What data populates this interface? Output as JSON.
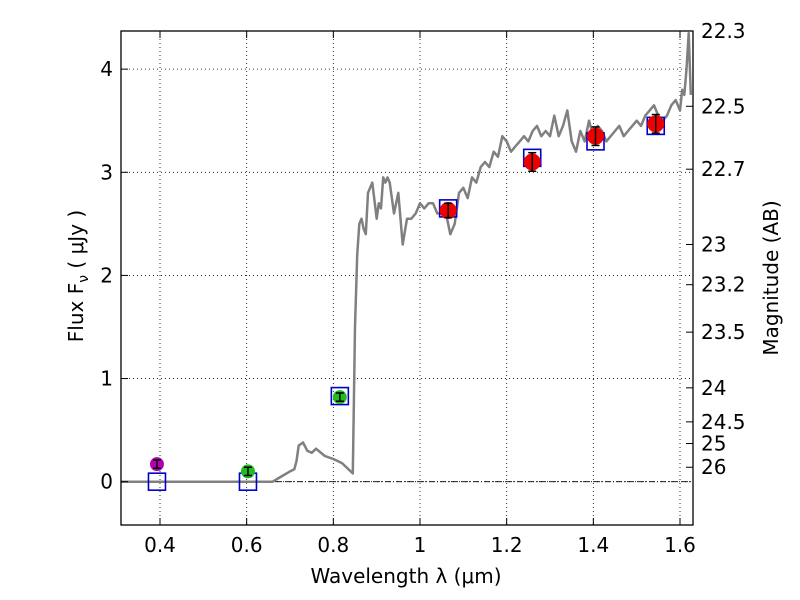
{
  "chart_data": {
    "type": "scatter",
    "xlabel": "Wavelength  λ (μm)",
    "ylabel": "Flux  F",
    "ylabel_sub": "ν",
    "ylabel_units": " ( μJy )",
    "y2label": "Magnitude (AB)",
    "xlim": [
      0.31,
      1.63
    ],
    "ylim": [
      -0.42,
      4.37
    ],
    "grid": true,
    "xticks": [
      0.4,
      0.6,
      0.8,
      1.0,
      1.2,
      1.4,
      1.6
    ],
    "xtick_labels": [
      "0.4",
      "0.6",
      "0.8",
      "1",
      "1.2",
      "1.4",
      "1.6"
    ],
    "yticks": [
      0,
      1,
      2,
      3,
      4
    ],
    "ytick_labels": [
      "0",
      "1",
      "2",
      "3",
      "4"
    ],
    "mag_ticks": [
      {
        "label": "22.3",
        "flux": 4.37
      },
      {
        "label": "22.5",
        "flux": 3.64
      },
      {
        "label": "22.7",
        "flux": 3.03
      },
      {
        "label": "23",
        "flux": 2.3
      },
      {
        "label": "23.2",
        "flux": 1.91
      },
      {
        "label": "23.5",
        "flux": 1.45
      },
      {
        "label": "24",
        "flux": 0.91
      },
      {
        "label": "24.5",
        "flux": 0.58
      },
      {
        "label": "25",
        "flux": 0.37
      },
      {
        "label": "26",
        "flux": 0.14
      }
    ],
    "sed_model": {
      "name": "model spectrum",
      "color": "#808080",
      "x": [
        0.31,
        0.66,
        0.68,
        0.7,
        0.71,
        0.715,
        0.72,
        0.73,
        0.74,
        0.75,
        0.76,
        0.78,
        0.8,
        0.82,
        0.84,
        0.845,
        0.85,
        0.855,
        0.86,
        0.865,
        0.87,
        0.875,
        0.88,
        0.89,
        0.9,
        0.905,
        0.91,
        0.915,
        0.92,
        0.925,
        0.93,
        0.94,
        0.95,
        0.96,
        0.97,
        0.98,
        0.99,
        1.0,
        1.01,
        1.02,
        1.03,
        1.04,
        1.05,
        1.06,
        1.07,
        1.08,
        1.09,
        1.1,
        1.11,
        1.12,
        1.13,
        1.14,
        1.15,
        1.16,
        1.17,
        1.18,
        1.19,
        1.2,
        1.21,
        1.22,
        1.23,
        1.24,
        1.25,
        1.26,
        1.27,
        1.28,
        1.29,
        1.3,
        1.31,
        1.32,
        1.33,
        1.34,
        1.35,
        1.36,
        1.37,
        1.38,
        1.39,
        1.4,
        1.41,
        1.42,
        1.43,
        1.44,
        1.45,
        1.46,
        1.47,
        1.48,
        1.49,
        1.5,
        1.51,
        1.52,
        1.53,
        1.54,
        1.55,
        1.56,
        1.57,
        1.58,
        1.59,
        1.6,
        1.605,
        1.61,
        1.615,
        1.62,
        1.625
      ],
      "y": [
        0.0,
        0.0,
        0.05,
        0.1,
        0.12,
        0.2,
        0.35,
        0.38,
        0.3,
        0.28,
        0.32,
        0.25,
        0.22,
        0.18,
        0.1,
        0.08,
        1.5,
        2.2,
        2.5,
        2.55,
        2.45,
        2.4,
        2.8,
        2.9,
        2.55,
        2.7,
        2.65,
        2.95,
        2.9,
        2.95,
        2.9,
        2.6,
        2.8,
        2.3,
        2.55,
        2.55,
        2.6,
        2.7,
        2.65,
        2.7,
        2.7,
        2.6,
        2.6,
        2.6,
        2.4,
        2.5,
        2.8,
        2.85,
        2.75,
        2.95,
        2.9,
        3.05,
        3.1,
        3.05,
        3.2,
        3.15,
        3.35,
        3.3,
        3.2,
        3.25,
        3.3,
        3.35,
        3.3,
        3.4,
        3.45,
        3.35,
        3.4,
        3.35,
        3.55,
        3.35,
        3.45,
        3.6,
        3.3,
        3.2,
        3.4,
        3.3,
        3.5,
        3.35,
        3.45,
        3.4,
        3.3,
        3.35,
        3.4,
        3.45,
        3.35,
        3.4,
        3.45,
        3.5,
        3.45,
        3.55,
        3.6,
        3.65,
        3.55,
        3.5,
        3.55,
        3.65,
        3.7,
        3.6,
        3.8,
        3.75,
        4.0,
        4.35,
        3.75
      ]
    },
    "series": [
      {
        "name": "blue open squares (model photometry)",
        "color": "#0000cc",
        "x": [
          0.393,
          0.603,
          0.815,
          1.065,
          1.259,
          1.405,
          1.544
        ],
        "y": [
          0.0,
          0.0,
          0.83,
          2.65,
          3.14,
          3.3,
          3.45
        ]
      },
      {
        "name": "magenta",
        "color": "#b300b3",
        "x": [
          0.393
        ],
        "y": [
          0.17
        ],
        "yerr": [
          0.04
        ]
      },
      {
        "name": "green",
        "color": "#22bb22",
        "x": [
          0.603,
          0.815
        ],
        "y": [
          0.1,
          0.82
        ],
        "yerr": [
          0.04,
          0.04
        ]
      },
      {
        "name": "red",
        "color": "#ee0000",
        "x": [
          1.065,
          1.259,
          1.405,
          1.544
        ],
        "y": [
          2.63,
          3.1,
          3.35,
          3.47
        ],
        "yerr": [
          0.07,
          0.09,
          0.09,
          0.09
        ]
      }
    ]
  }
}
